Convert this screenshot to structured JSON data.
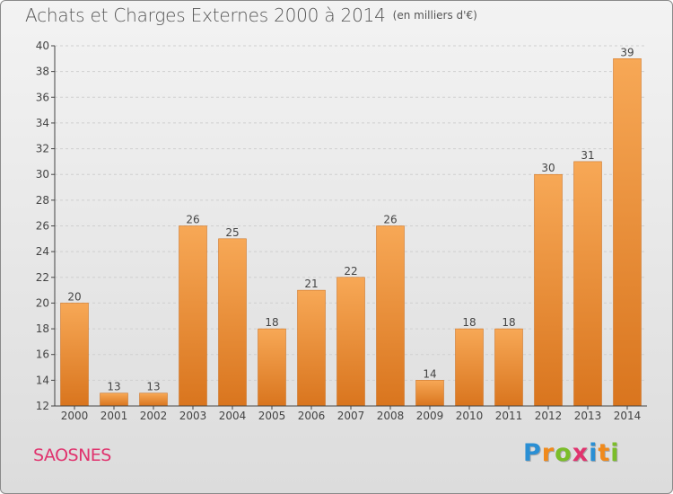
{
  "title": "Achats et Charges Externes 2000 à 2014",
  "unit": "(en milliers d'€)",
  "commune": "SAOSNES",
  "logo": {
    "text": "Proxiti",
    "letters": [
      {
        "ch": "P",
        "color": "#2a8fd4"
      },
      {
        "ch": "r",
        "color": "#f08a1c"
      },
      {
        "ch": "o",
        "color": "#7bbd2a"
      },
      {
        "ch": "x",
        "color": "#e0336e"
      },
      {
        "ch": "i",
        "color": "#2a8fd4"
      },
      {
        "ch": "t",
        "color": "#f08a1c"
      },
      {
        "ch": "i",
        "color": "#7bbd2a"
      }
    ]
  },
  "colors": {
    "bar_light": "#f7a856",
    "bar_dark": "#d9751e",
    "grid": "#cfcfcf",
    "axis": "#444444",
    "label": "#444444"
  },
  "chart_data": {
    "type": "bar",
    "categories": [
      "2000",
      "2001",
      "2002",
      "2003",
      "2004",
      "2005",
      "2006",
      "2007",
      "2008",
      "2009",
      "2010",
      "2011",
      "2012",
      "2013",
      "2014"
    ],
    "values": [
      20,
      13,
      13,
      26,
      25,
      18,
      21,
      22,
      26,
      14,
      18,
      18,
      30,
      31,
      39
    ],
    "ylim": [
      12,
      40
    ],
    "yticks": [
      12,
      14,
      16,
      18,
      20,
      22,
      24,
      26,
      28,
      30,
      32,
      34,
      36,
      38,
      40
    ],
    "grid": true,
    "data_labels": true
  }
}
